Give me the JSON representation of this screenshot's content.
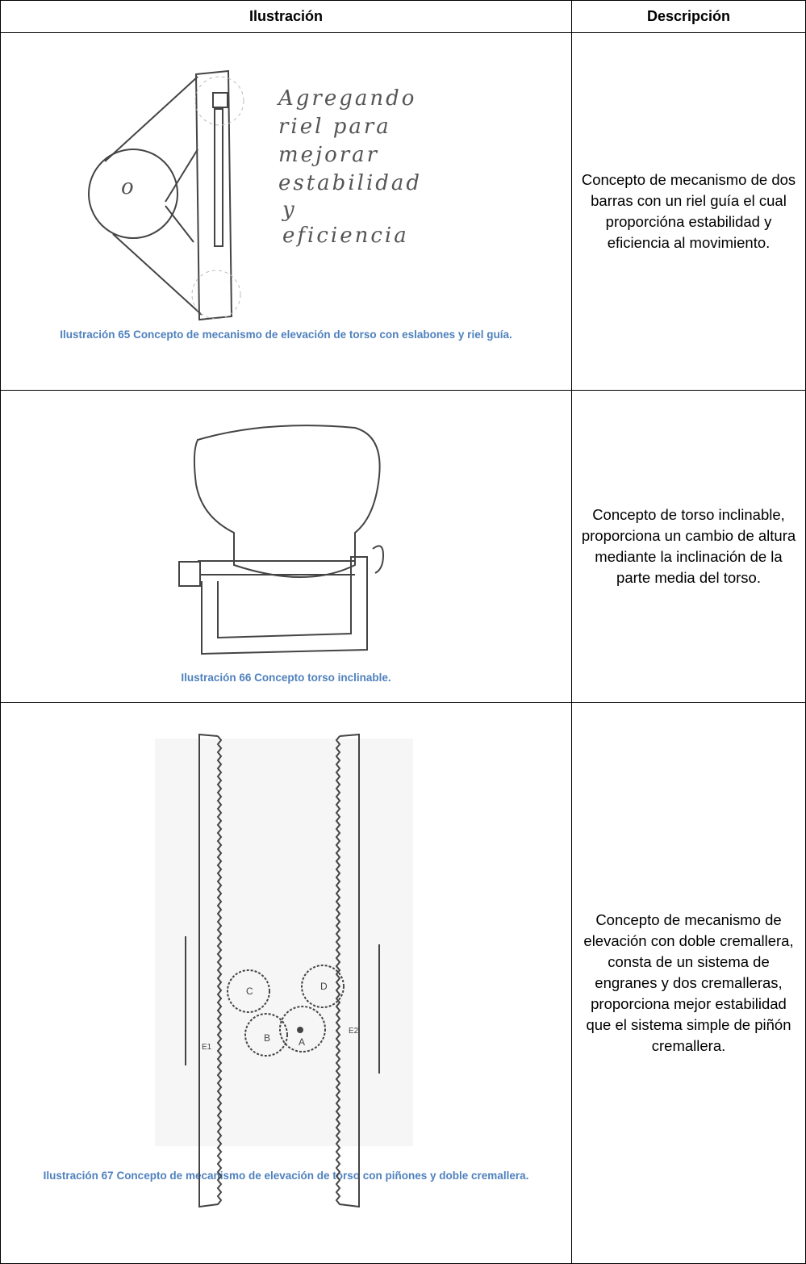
{
  "table": {
    "header": [
      "Ilustración",
      "Descripción"
    ],
    "rows": [
      {
        "caption": "Ilustración 65 Concepto de mecanismo de elevación de torso con eslabones y riel guía.",
        "description": "Concepto de mecanismo de dos barras con un riel guía el cual proporcióna estabilidad y eficiencia al movimiento.",
        "sketch_text": [
          "Agregando",
          "riel para",
          "mejorar",
          "estabilidad",
          "y",
          "eficiencia"
        ]
      },
      {
        "caption": "Ilustración 66 Concepto torso inclinable.",
        "description": "Concepto de torso inclinable, proporciona un cambio de altura mediante la inclinación de la parte media del torso."
      },
      {
        "caption": "Ilustración 67 Concepto de mecanismo de elevación de torso con piñones y doble cremallera.",
        "description": "Concepto de mecanismo de elevación con doble cremallera, consta de un sistema de engranes y dos cremalleras, proporciona mejor estabilidad que el sistema simple de piñón cremallera.",
        "sketch_text": [
          "C",
          "D",
          "B",
          "A",
          "E1",
          "E2"
        ]
      }
    ]
  }
}
